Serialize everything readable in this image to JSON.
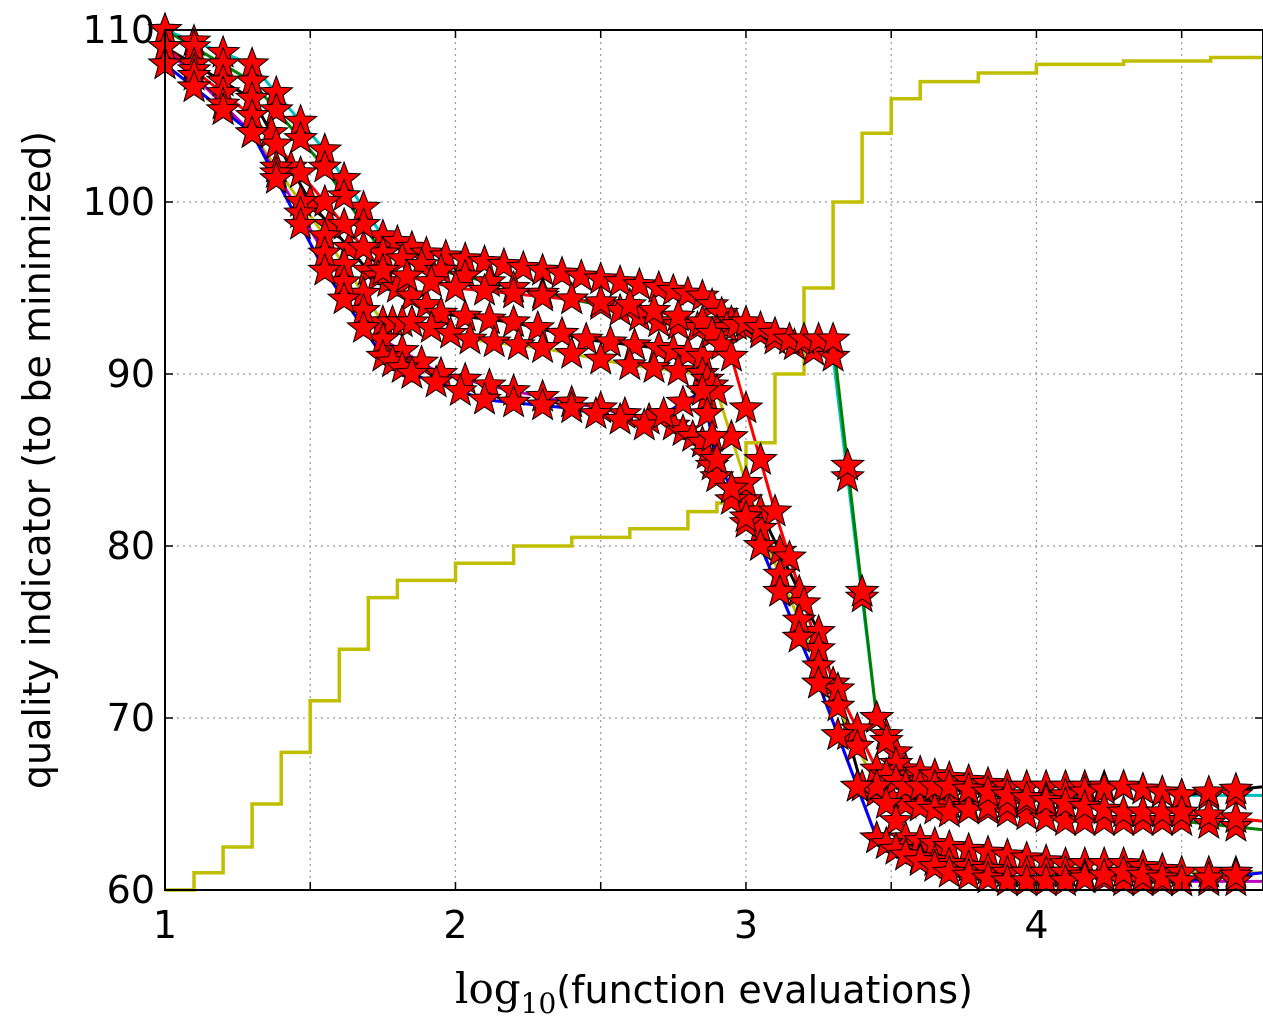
{
  "chart_data": {
    "type": "line",
    "title": "",
    "xlabel_prefix": "log",
    "xlabel_sub": "10",
    "xlabel_suffix": "(function evaluations)",
    "ylabel": "quality indicator (to be minimized)",
    "xlim": [
      1,
      4.78
    ],
    "ylim": [
      60,
      110
    ],
    "x_ticks": [
      1,
      1.5,
      2,
      2.5,
      3,
      3.5,
      4,
      4.5
    ],
    "x_tick_labels": [
      "1",
      "",
      "2",
      "",
      "3",
      "",
      "4",
      ""
    ],
    "y_ticks": [
      60,
      70,
      80,
      90,
      100,
      110
    ],
    "y_tick_labels": [
      "60",
      "70",
      "80",
      "90",
      "100",
      "110"
    ],
    "grid": true,
    "legend": "none",
    "marker_color": "#ff0000",
    "series": [
      {
        "color": "#00bfbf",
        "x": [
          1.0,
          1.3,
          1.55,
          1.75,
          1.9,
          2.1,
          2.3,
          2.5,
          2.7,
          2.85,
          2.95,
          3.1,
          3.3,
          3.45,
          3.55,
          3.7,
          3.9,
          4.1,
          4.3,
          4.5,
          4.78
        ],
        "y": [
          110,
          108,
          103,
          98,
          97,
          96.5,
          96,
          95.5,
          95,
          94.5,
          93,
          92,
          91,
          70,
          67,
          66.5,
          66,
          66,
          66,
          65.5,
          65.5
        ]
      },
      {
        "color": "#008000",
        "x": [
          1.0,
          1.3,
          1.55,
          1.75,
          1.95,
          2.2,
          2.5,
          2.7,
          2.9,
          3.0,
          3.15,
          3.3,
          3.45,
          3.55,
          3.7,
          3.9,
          4.1,
          4.3,
          4.5,
          4.78
        ],
        "y": [
          110,
          107,
          102,
          97,
          96,
          95,
          94,
          93,
          92.5,
          93,
          92,
          92,
          70,
          66,
          65,
          64.5,
          64,
          64,
          64,
          63.5
        ]
      },
      {
        "color": "#000000",
        "x": [
          1.0,
          1.3,
          1.5,
          1.7,
          1.8,
          1.95,
          2.2,
          2.45,
          2.7,
          2.85,
          2.9,
          3.05,
          3.25,
          3.4,
          3.55,
          3.7,
          3.9,
          4.1,
          4.3,
          4.5,
          4.78
        ],
        "y": [
          109,
          106,
          100,
          96,
          95,
          93.5,
          93,
          92,
          91.5,
          91,
          84,
          82,
          75,
          66,
          65,
          64.5,
          65,
          65.5,
          66,
          65.5,
          66
        ]
      },
      {
        "color": "#ff0000",
        "x": [
          1.0,
          1.3,
          1.55,
          1.75,
          2.0,
          2.3,
          2.6,
          2.85,
          2.95,
          3.1,
          3.25,
          3.45,
          3.55,
          3.7,
          3.9,
          4.1,
          4.3,
          4.5,
          4.78
        ],
        "y": [
          109,
          105,
          100,
          96,
          95,
          94.5,
          94,
          93,
          91,
          82,
          74,
          67,
          66,
          66,
          65.5,
          65,
          64.5,
          64.5,
          64
        ]
      },
      {
        "color": "#bfbf00",
        "x": [
          1.0,
          1.3,
          1.55,
          1.75,
          1.85,
          2.05,
          2.3,
          2.6,
          2.85,
          2.9,
          3.05,
          3.25,
          3.45,
          3.55,
          3.7,
          3.9,
          4.1,
          4.3,
          4.5,
          4.78
        ],
        "y": [
          108,
          104,
          98,
          93,
          93,
          92,
          91.5,
          90.5,
          90,
          89,
          81,
          73,
          66,
          63,
          62.5,
          62,
          61.5,
          61.5,
          61,
          61
        ]
      },
      {
        "color": "#bf00bf",
        "x": [
          1.0,
          1.3,
          1.55,
          1.75,
          1.95,
          2.2,
          2.5,
          2.75,
          2.85,
          2.9,
          3.05,
          3.25,
          3.45,
          3.55,
          3.7,
          3.9,
          4.1,
          4.3,
          4.5,
          4.78
        ],
        "y": [
          109,
          104,
          97,
          92,
          90,
          89,
          88,
          87,
          86,
          84,
          80,
          72,
          63,
          62,
          61.5,
          61,
          61,
          60.5,
          60.5,
          60.5
        ]
      },
      {
        "color": "#0000ff",
        "x": [
          1.0,
          1.3,
          1.55,
          1.75,
          1.85,
          2.1,
          2.4,
          2.65,
          2.85,
          2.9,
          3.05,
          3.25,
          3.45,
          3.55,
          3.7,
          3.9,
          4.1,
          4.3,
          4.5,
          4.78
        ],
        "y": [
          108,
          104,
          96,
          91,
          90,
          88.5,
          88,
          87,
          89,
          85,
          80,
          72,
          63,
          62,
          61,
          60.5,
          60.5,
          61,
          60.5,
          61
        ]
      }
    ],
    "quantile_curve": {
      "color": "#bfbf00",
      "x": [
        1.0,
        1.1,
        1.2,
        1.3,
        1.4,
        1.5,
        1.6,
        1.7,
        1.8,
        2.0,
        2.2,
        2.4,
        2.6,
        2.8,
        2.9,
        2.95,
        3.0,
        3.1,
        3.2,
        3.3,
        3.4,
        3.5,
        3.6,
        3.8,
        4.0,
        4.3,
        4.6,
        4.78
      ],
      "y": [
        60,
        61,
        62.5,
        65,
        68,
        71,
        74,
        77,
        78,
        79,
        80,
        80.5,
        81,
        82,
        82.5,
        83,
        86,
        90,
        95,
        100,
        104,
        106,
        107,
        107.5,
        108,
        108.2,
        108.4,
        108.5
      ]
    }
  }
}
